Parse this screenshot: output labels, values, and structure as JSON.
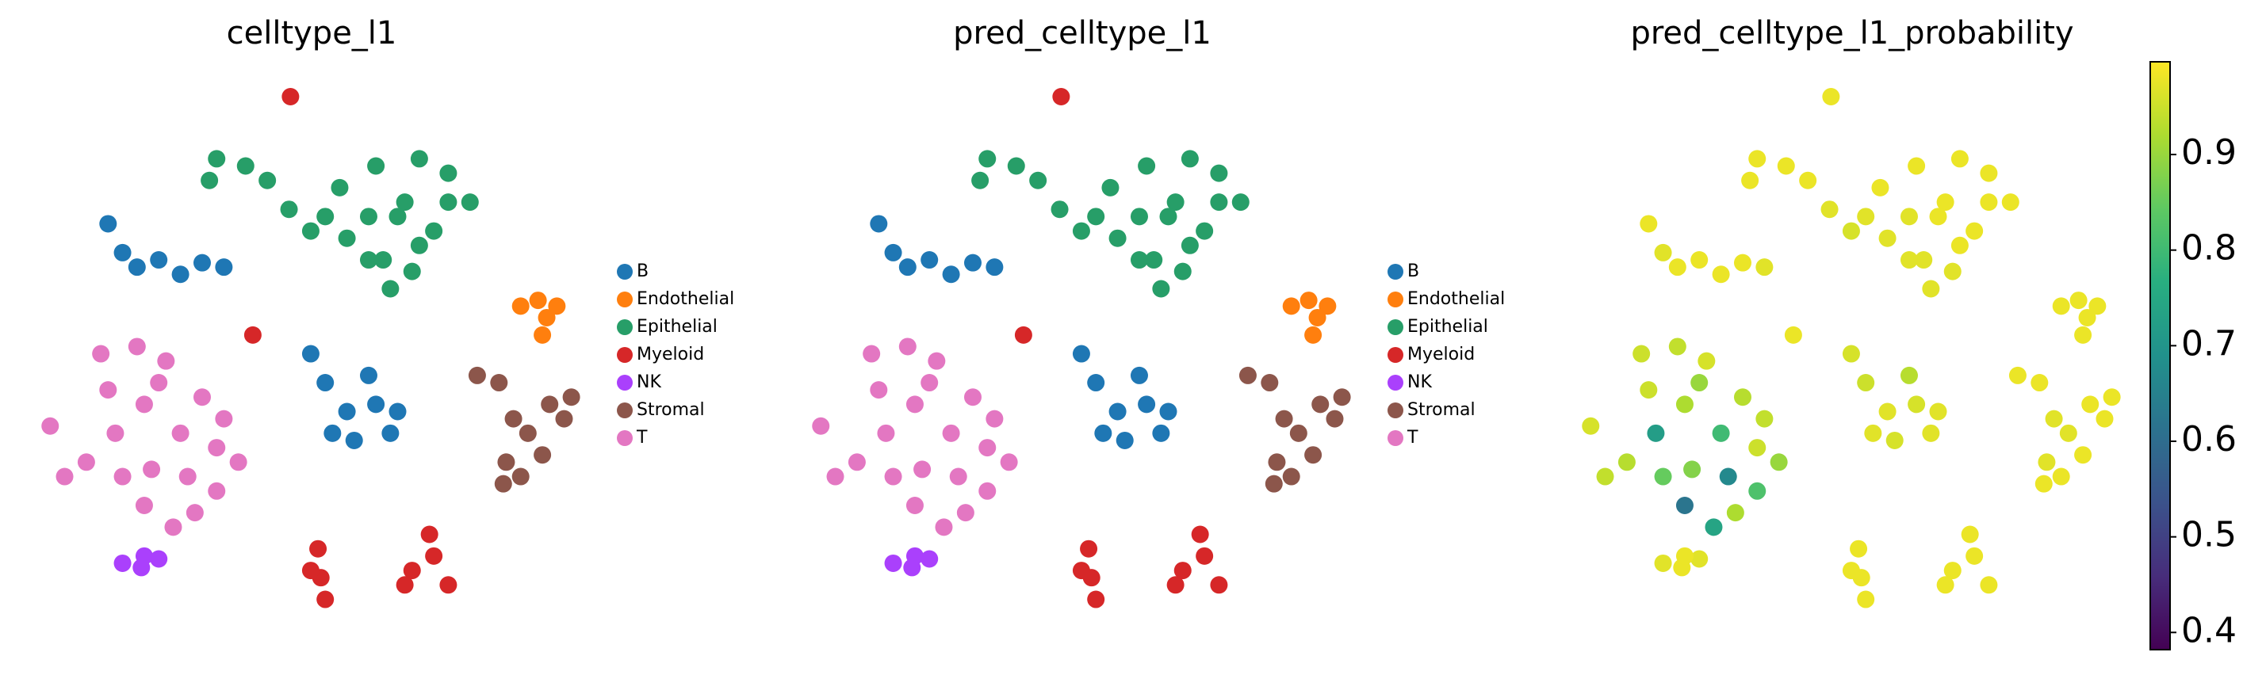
{
  "chart_data": [
    {
      "type": "scatter",
      "title": "celltype_l1",
      "xlim": [
        25,
        410
      ],
      "ylim": [
        15,
        400
      ],
      "legend": "right",
      "series": [
        {
          "name": "B",
          "color": "#1f77b4",
          "x": [
            75,
            85,
            110,
            140,
            155,
            95,
            125,
            215,
            225,
            240,
            260,
            270,
            245,
            230,
            255,
            275
          ],
          "y": [
            295,
            275,
            270,
            268,
            265,
            265,
            260,
            205,
            185,
            165,
            170,
            150,
            145,
            150,
            190,
            165
          ]
        },
        {
          "name": "Endothelial",
          "color": "#ff7f0e",
          "x": [
            360,
            372,
            385,
            378,
            375
          ],
          "y": [
            238,
            242,
            238,
            230,
            218
          ]
        },
        {
          "name": "Epithelial",
          "color": "#279e68",
          "x": [
            150,
            170,
            185,
            145,
            200,
            215,
            235,
            260,
            290,
            310,
            255,
            280,
            310,
            325,
            265,
            290,
            270,
            240,
            300,
            225,
            275,
            255,
            285
          ],
          "y": [
            340,
            335,
            325,
            325,
            305,
            290,
            320,
            335,
            340,
            330,
            300,
            310,
            310,
            310,
            270,
            280,
            250,
            285,
            290,
            300,
            300,
            270,
            262
          ]
        },
        {
          "name": "Myeloid",
          "color": "#d62728",
          "x": [
            201,
            175,
            220,
            222,
            225,
            215,
            297,
            285,
            310,
            300,
            280
          ],
          "y": [
            383,
            218,
            70,
            50,
            35,
            55,
            80,
            55,
            45,
            65,
            45
          ]
        },
        {
          "name": "NK",
          "color": "#aa40fc",
          "x": [
            85,
            98,
            110,
            100
          ],
          "y": [
            60,
            57,
            63,
            65
          ]
        },
        {
          "name": "Stromal",
          "color": "#8c564b",
          "x": [
            330,
            345,
            355,
            350,
            360,
            375,
            390,
            395,
            380,
            365,
            348
          ],
          "y": [
            190,
            185,
            160,
            130,
            120,
            135,
            160,
            175,
            170,
            150,
            115
          ]
        },
        {
          "name": "T",
          "color": "#e377c2",
          "x": [
            70,
            95,
            115,
            140,
            165,
            150,
            120,
            100,
            60,
            45,
            80,
            100,
            125,
            150,
            130,
            105,
            75,
            110,
            85,
            35,
            135,
            155
          ],
          "y": [
            205,
            210,
            200,
            175,
            130,
            110,
            85,
            100,
            130,
            120,
            150,
            170,
            150,
            140,
            120,
            125,
            180,
            185,
            120,
            155,
            95,
            160
          ]
        }
      ]
    },
    {
      "type": "scatter",
      "title": "pred_celltype_l1",
      "xlim": [
        25,
        410
      ],
      "ylim": [
        15,
        400
      ],
      "legend": "right",
      "series": [
        {
          "name": "B",
          "color": "#1f77b4",
          "x": [
            75,
            85,
            110,
            140,
            155,
            95,
            125,
            215,
            225,
            240,
            260,
            270,
            245,
            230,
            255,
            275
          ],
          "y": [
            295,
            275,
            270,
            268,
            265,
            265,
            260,
            205,
            185,
            165,
            170,
            150,
            145,
            150,
            190,
            165
          ]
        },
        {
          "name": "Endothelial",
          "color": "#ff7f0e",
          "x": [
            360,
            372,
            385,
            378,
            375
          ],
          "y": [
            238,
            242,
            238,
            230,
            218
          ]
        },
        {
          "name": "Epithelial",
          "color": "#279e68",
          "x": [
            150,
            170,
            185,
            145,
            200,
            215,
            235,
            260,
            290,
            310,
            255,
            280,
            310,
            325,
            265,
            290,
            270,
            240,
            300,
            225,
            275,
            255,
            285
          ],
          "y": [
            340,
            335,
            325,
            325,
            305,
            290,
            320,
            335,
            340,
            330,
            300,
            310,
            310,
            310,
            270,
            280,
            250,
            285,
            290,
            300,
            300,
            270,
            262
          ]
        },
        {
          "name": "Myeloid",
          "color": "#d62728",
          "x": [
            201,
            175,
            220,
            222,
            225,
            215,
            297,
            285,
            310,
            300,
            280
          ],
          "y": [
            383,
            218,
            70,
            50,
            35,
            55,
            80,
            55,
            45,
            65,
            45
          ]
        },
        {
          "name": "NK",
          "color": "#aa40fc",
          "x": [
            85,
            98,
            110,
            100
          ],
          "y": [
            60,
            57,
            63,
            65
          ]
        },
        {
          "name": "Stromal",
          "color": "#8c564b",
          "x": [
            330,
            345,
            355,
            350,
            360,
            375,
            390,
            395,
            380,
            365,
            348
          ],
          "y": [
            190,
            185,
            160,
            130,
            120,
            135,
            160,
            175,
            170,
            150,
            115
          ]
        },
        {
          "name": "T",
          "color": "#e377c2",
          "x": [
            70,
            95,
            115,
            140,
            165,
            150,
            120,
            100,
            60,
            45,
            80,
            100,
            125,
            150,
            130,
            105,
            75,
            110,
            85,
            35,
            135,
            155
          ],
          "y": [
            205,
            210,
            200,
            175,
            130,
            110,
            85,
            100,
            130,
            120,
            150,
            170,
            150,
            140,
            120,
            125,
            180,
            185,
            120,
            155,
            95,
            160
          ]
        }
      ]
    },
    {
      "type": "scatter",
      "title": "pred_celltype_l1_probability",
      "xlim": [
        25,
        410
      ],
      "ylim": [
        15,
        400
      ],
      "colormap": "viridis",
      "clim": [
        0.382,
        0.997
      ],
      "cticks": [
        0.4,
        0.5,
        0.6,
        0.7,
        0.8,
        0.9
      ],
      "x": [
        75,
        85,
        110,
        140,
        155,
        95,
        125,
        215,
        225,
        240,
        260,
        270,
        245,
        230,
        255,
        275,
        360,
        372,
        385,
        378,
        375,
        150,
        170,
        185,
        145,
        200,
        215,
        235,
        260,
        290,
        310,
        255,
        280,
        310,
        325,
        265,
        290,
        270,
        240,
        300,
        225,
        275,
        255,
        285,
        201,
        175,
        220,
        222,
        225,
        215,
        297,
        285,
        310,
        300,
        280,
        85,
        98,
        110,
        100,
        330,
        345,
        355,
        350,
        360,
        375,
        390,
        395,
        380,
        365,
        348,
        70,
        95,
        115,
        140,
        165,
        150,
        120,
        100,
        60,
        45,
        80,
        100,
        125,
        150,
        130,
        105,
        75,
        110,
        85,
        35,
        135,
        155
      ],
      "y": [
        295,
        275,
        270,
        268,
        265,
        265,
        260,
        205,
        185,
        165,
        170,
        150,
        145,
        150,
        190,
        165,
        238,
        242,
        238,
        230,
        218,
        340,
        335,
        325,
        325,
        305,
        290,
        320,
        335,
        340,
        330,
        300,
        310,
        310,
        310,
        270,
        280,
        250,
        285,
        290,
        300,
        300,
        270,
        262,
        383,
        218,
        70,
        50,
        35,
        55,
        80,
        55,
        45,
        65,
        45,
        60,
        57,
        63,
        65,
        190,
        185,
        160,
        130,
        120,
        135,
        160,
        175,
        170,
        150,
        115,
        205,
        210,
        200,
        175,
        130,
        110,
        85,
        100,
        130,
        120,
        150,
        170,
        150,
        140,
        120,
        125,
        180,
        185,
        120,
        155,
        95,
        160
      ],
      "values": [
        0.98,
        0.97,
        0.98,
        0.98,
        0.97,
        0.98,
        0.98,
        0.96,
        0.95,
        0.97,
        0.96,
        0.97,
        0.96,
        0.97,
        0.93,
        0.97,
        0.98,
        0.98,
        0.98,
        0.98,
        0.98,
        0.98,
        0.98,
        0.98,
        0.98,
        0.97,
        0.96,
        0.98,
        0.98,
        0.98,
        0.98,
        0.97,
        0.98,
        0.98,
        0.98,
        0.97,
        0.98,
        0.97,
        0.97,
        0.98,
        0.97,
        0.98,
        0.97,
        0.97,
        0.98,
        0.98,
        0.98,
        0.98,
        0.98,
        0.98,
        0.98,
        0.98,
        0.98,
        0.98,
        0.98,
        0.97,
        0.98,
        0.97,
        0.98,
        0.98,
        0.98,
        0.97,
        0.97,
        0.98,
        0.98,
        0.98,
        0.98,
        0.98,
        0.97,
        0.98,
        0.95,
        0.94,
        0.96,
        0.93,
        0.9,
        0.82,
        0.74,
        0.62,
        0.93,
        0.94,
        0.72,
        0.92,
        0.8,
        0.95,
        0.67,
        0.88,
        0.95,
        0.9,
        0.85,
        0.96,
        0.92,
        0.94
      ]
    }
  ]
}
